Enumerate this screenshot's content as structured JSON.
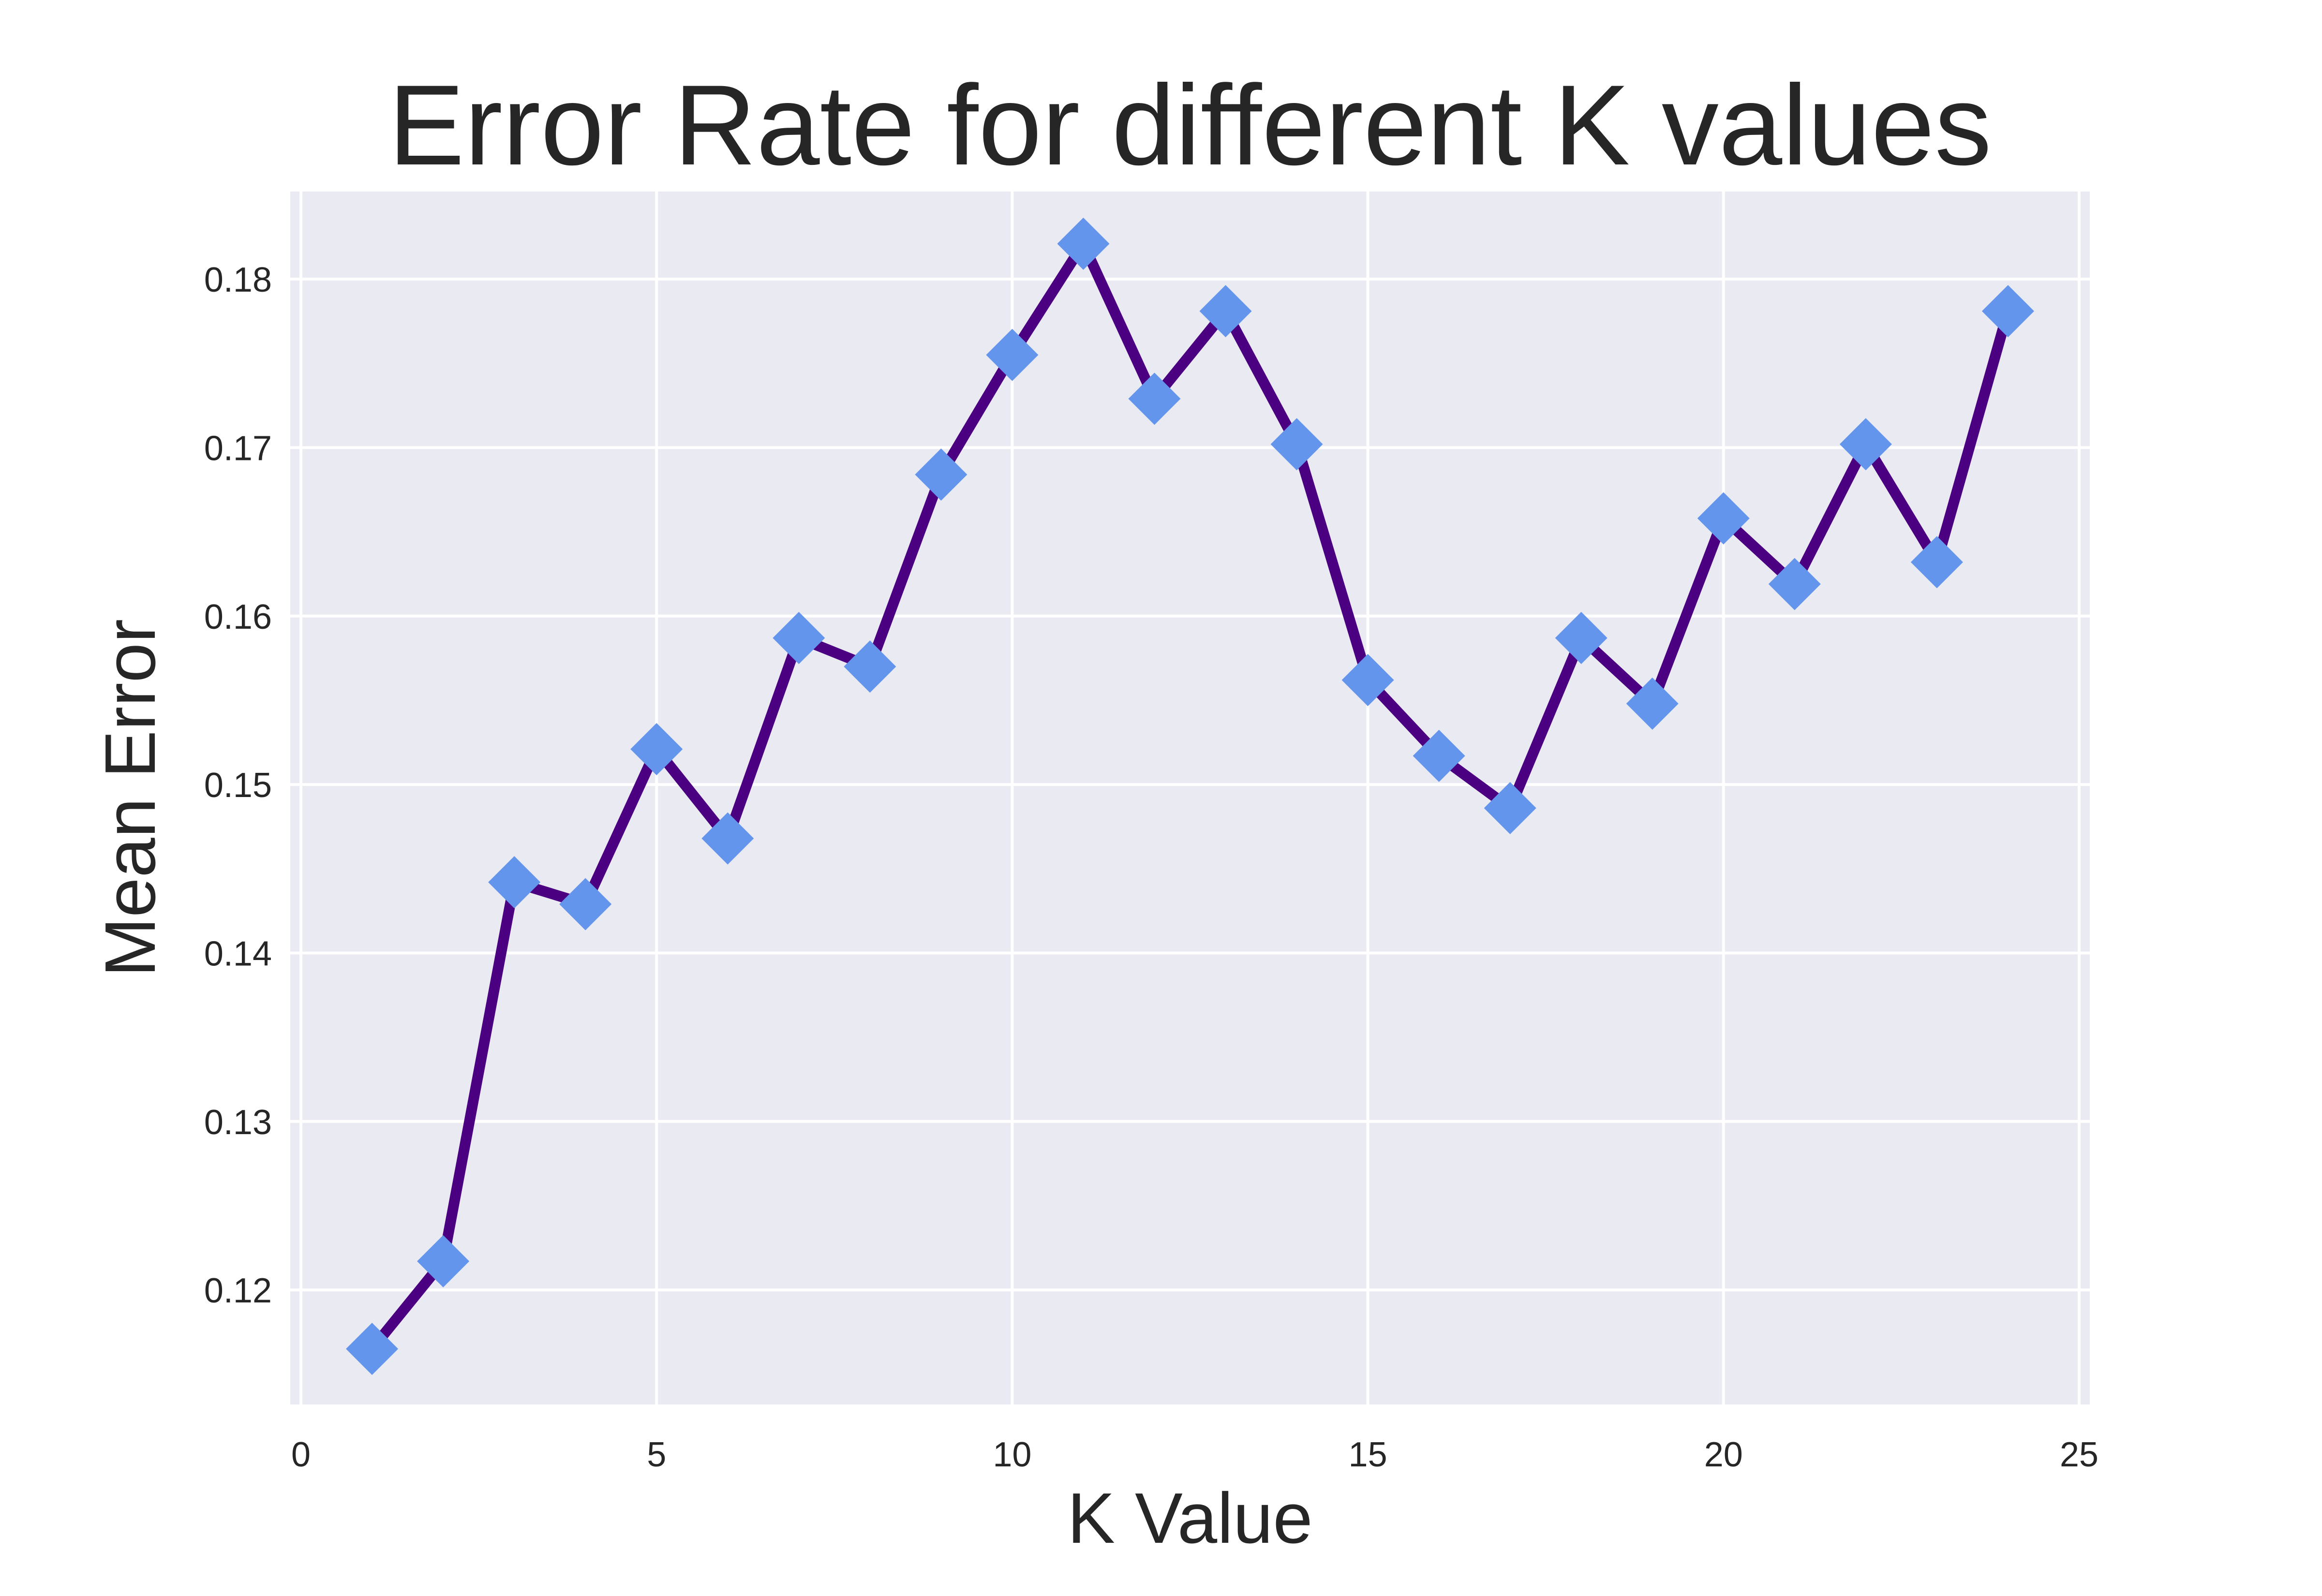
{
  "chart_data": {
    "type": "line",
    "title": "Error Rate for different K values",
    "xlabel": "K Value",
    "ylabel": "Mean Error",
    "xlim": [
      -0.15,
      25.15
    ],
    "ylim": [
      0.1132,
      0.1852
    ],
    "xticks": [
      0,
      5,
      10,
      15,
      20,
      25
    ],
    "yticks": [
      0.12,
      0.13,
      0.14,
      0.15,
      0.16,
      0.17,
      0.18
    ],
    "xtick_labels": [
      "0",
      "5",
      "10",
      "15",
      "20",
      "25"
    ],
    "ytick_labels": [
      "0.12",
      "0.13",
      "0.14",
      "0.15",
      "0.16",
      "0.17",
      "0.18"
    ],
    "grid": true,
    "legend": "none",
    "colors": {
      "background": "#EAEAF2",
      "grid": "#FFFFFF",
      "line": "#4B0082",
      "marker": "#6495ED",
      "text": "#262626"
    },
    "marker": "diamond",
    "series": [
      {
        "x": [
          1,
          2,
          3,
          4,
          5,
          6,
          7,
          8,
          9,
          10,
          11,
          12,
          13,
          14,
          15,
          16,
          17,
          18,
          19,
          20,
          21,
          22,
          23,
          24
        ],
        "values": [
          0.1165,
          0.1217,
          0.1442,
          0.1429,
          0.1521,
          0.1468,
          0.1587,
          0.157,
          0.1684,
          0.1755,
          0.1821,
          0.1729,
          0.1781,
          0.1702,
          0.1562,
          0.1517,
          0.1486,
          0.1587,
          0.1548,
          0.1658,
          0.1619,
          0.1702,
          0.1632,
          0.1781
        ]
      }
    ]
  }
}
